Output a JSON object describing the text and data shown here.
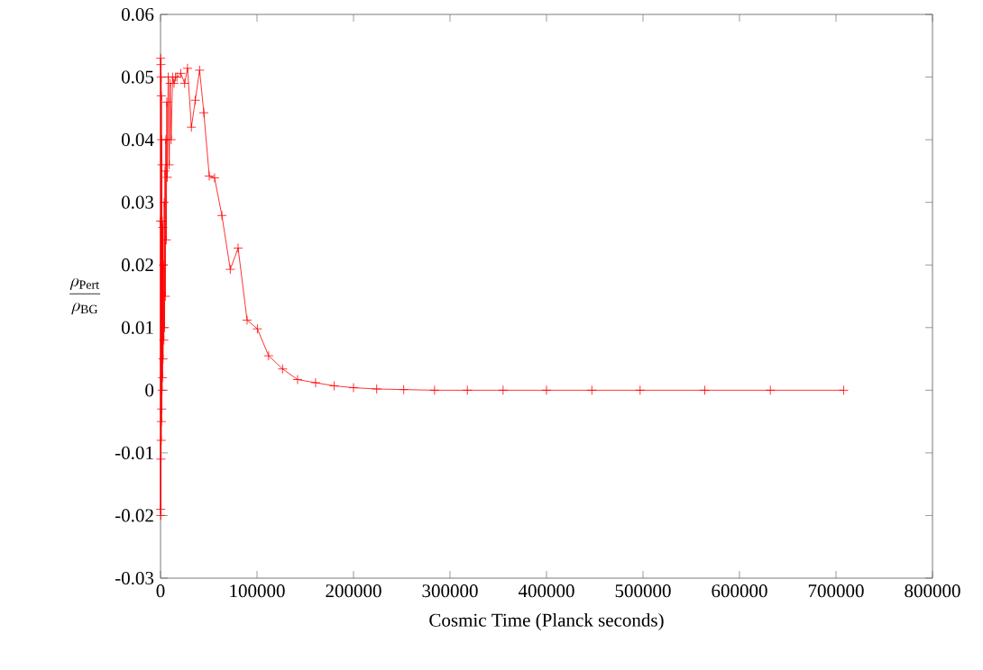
{
  "chart_data": {
    "type": "line",
    "xlabel": "Cosmic Time (Planck seconds)",
    "ylabel": "\\frac{\\rho_{\\rm Pert}}{\\rho_{\\rm BG}}",
    "xlim": [
      0,
      800000
    ],
    "xticks": [
      0,
      100000,
      200000,
      300000,
      400000,
      500000,
      600000,
      700000,
      800000
    ],
    "ylim": [
      -0.03,
      0.06
    ],
    "yticks": [
      -0.03,
      -0.02,
      -0.01,
      0,
      0.01,
      0.02,
      0.03,
      0.04,
      0.05,
      0.06
    ],
    "marker": "cross",
    "line_style": "solid",
    "series": [
      {
        "color": "#ff0000",
        "x": [
          0,
          100,
          200,
          300,
          400,
          500,
          600,
          700,
          800,
          900,
          1000,
          1200,
          1400,
          1600,
          1800,
          2000,
          2300,
          2600,
          3000,
          3400,
          3800,
          4200,
          4600,
          5000,
          5500,
          6000,
          6500,
          7000,
          8000,
          9000,
          10000,
          11000,
          12500,
          14000,
          15500,
          17000,
          21000,
          25000,
          28000,
          32000,
          36000,
          40500,
          44900,
          50500,
          56000,
          63600,
          72300,
          80400,
          89700,
          100400,
          112000,
          126500,
          142000,
          160700,
          180000,
          200000,
          224000,
          252000,
          284000,
          318000,
          355000,
          400000,
          447000,
          497000,
          564000,
          632000,
          708000
        ],
        "values": [
          0.027,
          -0.019,
          0.053,
          -0.02,
          0.052,
          -0.011,
          0.05,
          -0.008,
          0.047,
          -0.005,
          0.04,
          -0.003,
          0.036,
          0,
          0.027,
          0.002,
          0.026,
          0.005,
          0.02,
          0.008,
          0.03,
          0.01,
          0.035,
          0.015,
          0.04,
          0.024,
          0.046,
          0.034,
          0.05,
          0.036,
          0.049,
          0.04,
          0.05,
          0.049,
          0.05,
          0.05,
          0.0506,
          0.049,
          0.0514,
          0.042,
          0.0463,
          0.0511,
          0.0443,
          0.0342,
          0.0339,
          0.0279,
          0.0193,
          0.0227,
          0.0112,
          0.0098,
          0.0055,
          0.0034,
          0.0017,
          0.0012,
          0.0007,
          0.0004,
          0.0002,
          0.0001,
          0,
          0,
          0,
          0,
          0,
          0,
          0,
          0,
          0
        ]
      }
    ]
  }
}
